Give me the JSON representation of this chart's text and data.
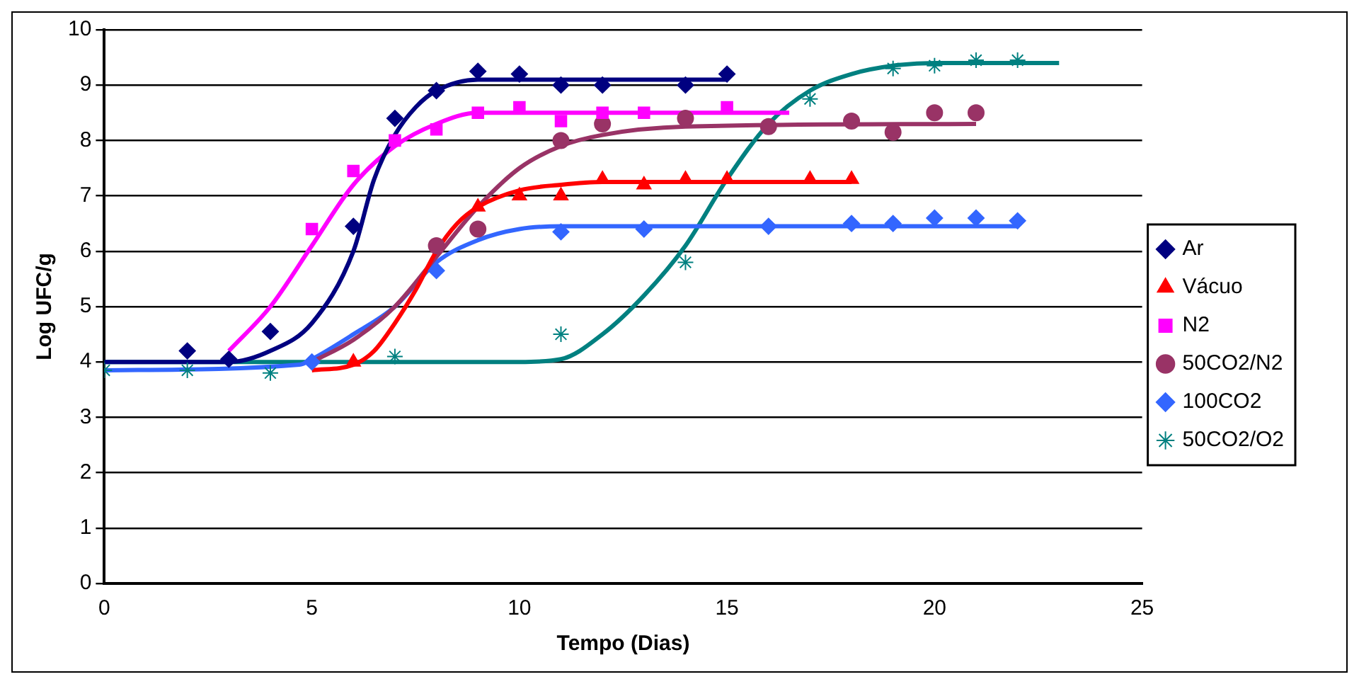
{
  "chart_data": {
    "type": "scatter",
    "xlabel": "Tempo (Dias)",
    "ylabel": "Log UFC/g",
    "xlim": [
      0,
      25
    ],
    "xticks": [
      0,
      5,
      10,
      15,
      20,
      25
    ],
    "ylim": [
      0,
      10
    ],
    "yticks": [
      0,
      1,
      2,
      3,
      4,
      5,
      6,
      7,
      8,
      9,
      10
    ],
    "grid": "y",
    "legend": "right",
    "series": [
      {
        "name": "Ar",
        "color": "#000080",
        "marker": "diamond",
        "x": [
          2,
          3,
          4,
          6,
          7,
          8,
          9,
          10,
          11,
          12,
          14,
          15
        ],
        "values": [
          4.2,
          4.05,
          4.55,
          6.45,
          8.4,
          8.9,
          9.25,
          9.2,
          9.0,
          9.0,
          9.0,
          9.2
        ]
      },
      {
        "name": "Vácuo",
        "color": "#ff0000",
        "marker": "triangle",
        "x": [
          6,
          9,
          10,
          11,
          12,
          13,
          14,
          15,
          17,
          18
        ],
        "values": [
          4.0,
          6.8,
          7.0,
          7.0,
          7.3,
          7.2,
          7.3,
          7.3,
          7.3,
          7.3
        ]
      },
      {
        "name": "N2",
        "color": "#ff00ff",
        "marker": "square",
        "x": [
          5,
          6,
          7,
          8,
          9,
          10,
          11,
          12,
          13,
          15
        ],
        "values": [
          6.4,
          7.45,
          8.0,
          8.2,
          8.5,
          8.6,
          8.35,
          8.5,
          8.5,
          8.6
        ]
      },
      {
        "name": "50CO2/N2",
        "color": "#993366",
        "marker": "circle",
        "x": [
          8,
          9,
          11,
          12,
          14,
          16,
          18,
          19,
          20,
          21
        ],
        "values": [
          6.1,
          6.4,
          8.0,
          8.3,
          8.4,
          8.25,
          8.35,
          8.15,
          8.5,
          8.5
        ]
      },
      {
        "name": "100CO2",
        "color": "#3366ff",
        "marker": "diamond",
        "x": [
          5,
          8,
          11,
          13,
          16,
          18,
          19,
          20,
          21,
          22
        ],
        "values": [
          4.0,
          5.65,
          6.35,
          6.4,
          6.45,
          6.5,
          6.5,
          6.6,
          6.6,
          6.55
        ]
      },
      {
        "name": "50CO2/O2",
        "color": "#008080",
        "marker": "cross",
        "x": [
          0,
          2,
          4,
          7,
          11,
          14,
          17,
          19,
          20,
          21,
          22
        ],
        "values": [
          3.85,
          3.85,
          3.8,
          4.1,
          4.5,
          5.8,
          8.75,
          9.3,
          9.35,
          9.45,
          9.45
        ]
      },
      {
        "type": "line",
        "color": "#000080",
        "marker": "none",
        "x": [
          0,
          3,
          4,
          5,
          6,
          6.5,
          7,
          7.5,
          8,
          9,
          10,
          15
        ],
        "values": [
          4.0,
          4.0,
          4.2,
          4.7,
          6.0,
          7.3,
          8.1,
          8.6,
          8.9,
          9.1,
          9.1,
          9.1
        ]
      },
      {
        "type": "line",
        "color": "#ff0000",
        "marker": "none",
        "x": [
          5,
          6,
          6.5,
          7,
          7.5,
          8,
          8.5,
          9,
          10,
          11,
          12,
          18
        ],
        "values": [
          3.85,
          3.95,
          4.2,
          4.7,
          5.3,
          6.0,
          6.5,
          6.8,
          7.1,
          7.2,
          7.25,
          7.25
        ]
      },
      {
        "type": "line",
        "color": "#ff00ff",
        "marker": "none",
        "x": [
          3,
          4,
          5,
          6,
          7,
          8,
          9,
          10,
          16.5
        ],
        "values": [
          4.2,
          5.0,
          6.1,
          7.2,
          7.9,
          8.3,
          8.5,
          8.5,
          8.5
        ]
      },
      {
        "type": "line",
        "color": "#993366",
        "marker": "none",
        "x": [
          5,
          6,
          7,
          8,
          9,
          10,
          11,
          12,
          14,
          21
        ],
        "values": [
          4.0,
          4.4,
          5.0,
          5.9,
          6.8,
          7.5,
          7.9,
          8.1,
          8.25,
          8.3
        ]
      },
      {
        "type": "line",
        "color": "#3366ff",
        "marker": "none",
        "x": [
          0,
          4.7,
          5,
          6,
          7,
          8,
          9,
          10,
          11,
          22
        ],
        "values": [
          3.85,
          3.95,
          4.05,
          4.5,
          5.0,
          5.8,
          6.2,
          6.4,
          6.45,
          6.45
        ]
      },
      {
        "type": "line",
        "color": "#008080",
        "marker": "none",
        "x": [
          0,
          10,
          11,
          12,
          13,
          14,
          15,
          16,
          17,
          18,
          19,
          20,
          23
        ],
        "values": [
          4.0,
          4.0,
          4.05,
          4.5,
          5.2,
          6.1,
          7.3,
          8.3,
          8.9,
          9.2,
          9.35,
          9.4,
          9.4
        ]
      }
    ]
  }
}
